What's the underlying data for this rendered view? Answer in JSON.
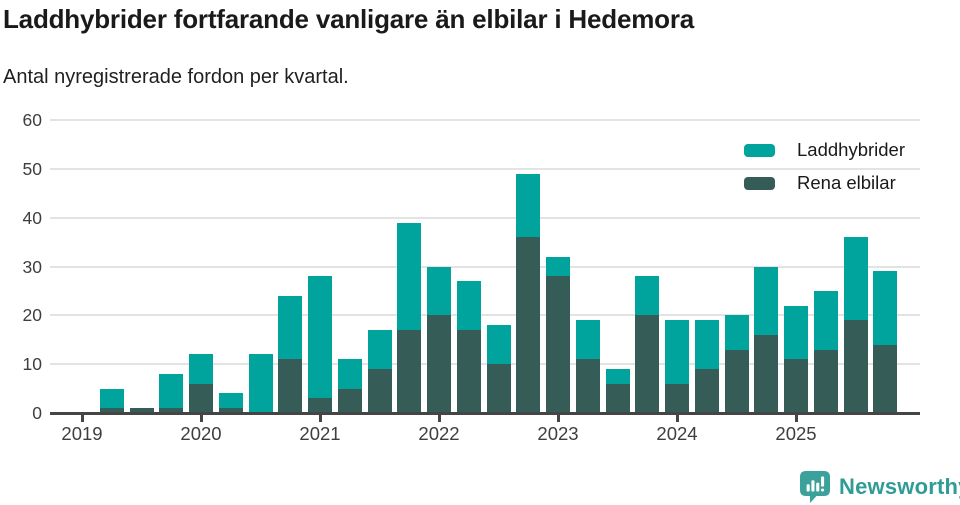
{
  "header": {
    "title": "Laddhybrider fortfarande vanligare än elbilar i Hedemora",
    "subtitle": "Antal nyregistrerade fordon per kvartal."
  },
  "chart_data": {
    "type": "bar",
    "stacked": true,
    "title": "Laddhybrider fortfarande vanligare än elbilar i Hedemora",
    "subtitle": "Antal nyregistrerade fordon per kvartal.",
    "categories": [
      "2019 Q1",
      "2019 Q2",
      "2019 Q3",
      "2019 Q4",
      "2020 Q1",
      "2020 Q2",
      "2020 Q3",
      "2020 Q4",
      "2021 Q1",
      "2021 Q2",
      "2021 Q3",
      "2021 Q4",
      "2022 Q1",
      "2022 Q2",
      "2022 Q3",
      "2022 Q4",
      "2023 Q1",
      "2023 Q2",
      "2023 Q3",
      "2023 Q4",
      "2024 Q1",
      "2024 Q2",
      "2024 Q3",
      "2024 Q4",
      "2025 Q1",
      "2025 Q2",
      "2025 Q3",
      "2025 Q4"
    ],
    "series": [
      {
        "name": "Laddhybrider",
        "color": "#00a49c",
        "stack_position": "top",
        "values": [
          0,
          4,
          0,
          7,
          6,
          3,
          12,
          13,
          25,
          6,
          8,
          22,
          10,
          10,
          8,
          13,
          4,
          8,
          3,
          8,
          13,
          10,
          7,
          14,
          11,
          12,
          17,
          15
        ]
      },
      {
        "name": "Rena elbilar",
        "color": "#365c57",
        "stack_position": "bottom",
        "values": [
          0,
          1,
          1,
          1,
          6,
          1,
          0,
          11,
          3,
          5,
          9,
          17,
          20,
          17,
          10,
          36,
          28,
          11,
          6,
          20,
          6,
          9,
          13,
          16,
          11,
          13,
          19,
          14
        ]
      }
    ],
    "stack_totals": [
      0,
      5,
      1,
      8,
      12,
      4,
      12,
      24,
      28,
      11,
      17,
      39,
      30,
      27,
      18,
      49,
      32,
      19,
      9,
      28,
      19,
      19,
      20,
      30,
      22,
      25,
      36,
      29
    ],
    "xlabel": "",
    "ylabel": "",
    "ylim": [
      0,
      60
    ],
    "yticks": [
      0,
      10,
      20,
      30,
      40,
      50,
      60
    ],
    "x_year_labels": [
      "2019",
      "2020",
      "2021",
      "2022",
      "2023",
      "2024",
      "2025"
    ],
    "grid": "horizontal",
    "legend_position": "top-right"
  },
  "footer": {
    "brand": "Newsworthy",
    "brand_color": "#2f9c95",
    "logo_icon": "newsworthy-bar-chart-speech-bubble-icon"
  }
}
